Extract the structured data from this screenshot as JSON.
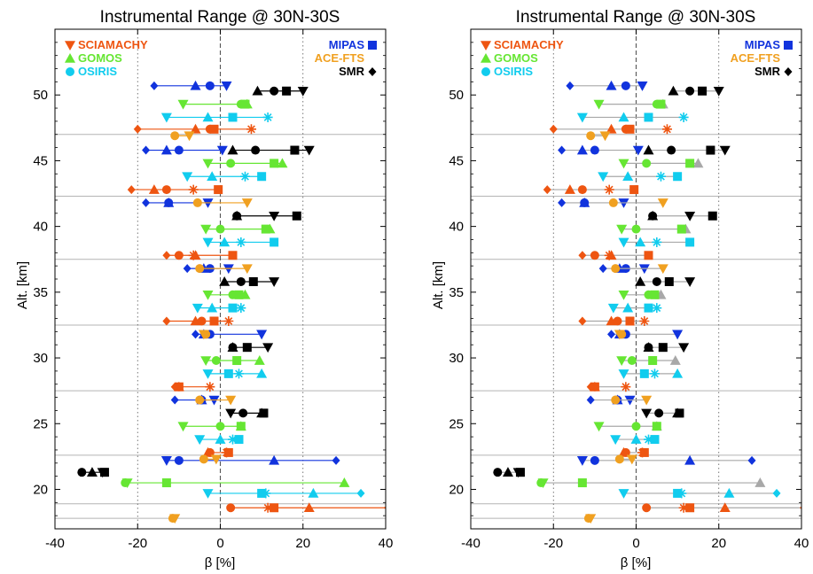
{
  "chart_data": [
    {
      "type": "scatter",
      "title": "Instrumental  Range @ 30N-30S",
      "xlabel": "β [%]",
      "ylabel": "Alt. [km]",
      "xlim": [
        -40,
        40
      ],
      "ylim": [
        17,
        55
      ],
      "xticks": [
        "-40",
        "-20",
        "0",
        "20",
        "40"
      ],
      "yticks": [
        "20",
        "25",
        "30",
        "35",
        "40",
        "45",
        "50"
      ],
      "grid": "dotted vertical lines at -20, 20; dashed line at 0; solid horizontal separators",
      "separators": [
        47,
        42.3,
        37.5,
        32.5,
        27.5,
        22.6,
        18.9,
        17.8
      ],
      "legend": [
        {
          "name": "SCIAMACHY",
          "color": "#ee5511",
          "marker": "triangle-down",
          "side": "left"
        },
        {
          "name": "GOMOS",
          "color": "#66e633",
          "marker": "triangle-up",
          "side": "left"
        },
        {
          "name": "OSIRIS",
          "color": "#11ccee",
          "marker": "circle",
          "side": "left"
        },
        {
          "name": "MIPAS",
          "color": "#1133dd",
          "marker": "square",
          "side": "right"
        },
        {
          "name": "ACE-FTS",
          "color": "#f0a020",
          "marker": "asterisk",
          "side": "right"
        },
        {
          "name": "SMR",
          "color": "#000000",
          "marker": "diamond",
          "side": "right"
        }
      ],
      "series": [
        {
          "name": "MIPAS",
          "color": "#1133dd",
          "rows": [
            {
              "alt": 50.7,
              "tri_down": 1.5,
              "tri_up": -6,
              "circle": -2.5,
              "diamond": -16
            },
            {
              "alt": 45.8,
              "tri_down": 0.5,
              "tri_up": -13,
              "circle": -10,
              "diamond": -18
            },
            {
              "alt": 41.8,
              "tri_down": -3,
              "tri_up": -12.5,
              "circle": -12.5,
              "diamond": -18
            },
            {
              "alt": 36.8,
              "tri_down": 2,
              "tri_up": -4,
              "circle": -2.5,
              "diamond": -8
            },
            {
              "alt": 31.8,
              "tri_down": 10,
              "tri_up": -4,
              "circle": -2.5,
              "diamond": -6
            },
            {
              "alt": 26.8,
              "tri_down": -1.5,
              "tri_up": -4.5,
              "circle": -4.5,
              "diamond": -11
            },
            {
              "alt": 22.2,
              "tri_down": -13,
              "tri_up": 13,
              "circle": -10,
              "diamond": 28
            }
          ]
        },
        {
          "name": "SMR",
          "color": "#000000",
          "rows": [
            {
              "alt": 50.3,
              "tri_down": 20,
              "tri_up": 9,
              "circle": 13,
              "square": 16
            },
            {
              "alt": 45.8,
              "tri_down": 21.5,
              "tri_up": 3,
              "circle": 8.5,
              "square": 18
            },
            {
              "alt": 40.8,
              "tri_down": 13,
              "tri_up": 4,
              "circle": 4,
              "square": 18.5
            },
            {
              "alt": 35.8,
              "tri_down": 13,
              "tri_up": 1,
              "circle": 5,
              "square": 8
            },
            {
              "alt": 30.8,
              "tri_down": 11.5,
              "tri_up": 3,
              "circle": 3,
              "square": 6.5
            },
            {
              "alt": 25.8,
              "tri_down": 2.5,
              "tri_up": 10,
              "circle": 5.5,
              "square": 10.5
            },
            {
              "alt": 21.3,
              "tri_down": -28.5,
              "tri_up": -31,
              "circle": -33.5,
              "square": -28
            }
          ]
        },
        {
          "name": "GOMOS",
          "color": "#66e633",
          "rows": [
            {
              "alt": 49.3,
              "tri_down": -9,
              "tri_up": 6.5,
              "circle": 5,
              "square": 6
            },
            {
              "alt": 44.8,
              "tri_down": -3,
              "tri_up": 15,
              "circle": 2.5,
              "square": 13
            },
            {
              "alt": 39.8,
              "tri_down": -3.5,
              "tri_up": 12,
              "circle": 0,
              "square": 11
            },
            {
              "alt": 34.8,
              "tri_down": -3,
              "tri_up": 6,
              "circle": 3,
              "square": 4.5
            },
            {
              "alt": 29.8,
              "tri_down": -3.5,
              "tri_up": 9.5,
              "circle": -1,
              "square": 4
            },
            {
              "alt": 24.8,
              "tri_down": -9,
              "tri_up": 5,
              "circle": 0,
              "square": 5
            },
            {
              "alt": 20.5,
              "tri_down": -22.5,
              "tri_up": 30,
              "circle": -23,
              "square": -13
            }
          ]
        },
        {
          "name": "OSIRIS",
          "color": "#11ccee",
          "rows": [
            {
              "alt": 48.3,
              "tri_down": -13,
              "tri_up": -3,
              "square": 3,
              "star": 11.5
            },
            {
              "alt": 43.8,
              "tri_down": -8,
              "tri_up": -2,
              "square": 10,
              "star": 6
            },
            {
              "alt": 38.8,
              "tri_down": -3,
              "tri_up": 1,
              "square": 13,
              "star": 5
            },
            {
              "alt": 33.8,
              "tri_down": -5.5,
              "tri_up": -2,
              "square": 3,
              "star": 5
            },
            {
              "alt": 28.8,
              "tri_down": -3,
              "tri_up": 10,
              "square": 2,
              "star": 4.5
            },
            {
              "alt": 23.8,
              "tri_down": -5,
              "tri_up": 0,
              "square": 4.5,
              "star": 3
            },
            {
              "alt": 19.7,
              "tri_down": -3,
              "tri_up": 22.5,
              "square": 10,
              "star": 11,
              "diamond": 34
            }
          ]
        },
        {
          "name": "SCIAMACHY",
          "color": "#ee5511",
          "rows": [
            {
              "alt": 47.4,
              "tri_up": -6,
              "circle": -2.5,
              "square": -1.5,
              "star": 7.5,
              "diamond": -20
            },
            {
              "alt": 42.8,
              "tri_up": -16,
              "circle": -13,
              "square": -0.5,
              "star": -6.5,
              "diamond": -21.5
            },
            {
              "alt": 37.8,
              "tri_up": -6,
              "circle": -10,
              "square": 3,
              "star": -6.5,
              "diamond": -13
            },
            {
              "alt": 32.8,
              "tri_up": -6,
              "circle": -4.5,
              "square": -1.5,
              "star": 2,
              "diamond": -13
            },
            {
              "alt": 27.8,
              "tri_up": -10,
              "circle": -10,
              "square": -10,
              "star": -2.5,
              "diamond": -11
            },
            {
              "alt": 22.8,
              "tri_up": -3,
              "circle": -2.5,
              "square": 2,
              "star": 1.5
            },
            {
              "alt": 18.6,
              "tri_up": 21.5,
              "circle": 2.5,
              "square": 13,
              "star": 11.5,
              "extends_to": 40
            }
          ]
        },
        {
          "name": "ACE-FTS",
          "color": "#f0a020",
          "rows": [
            {
              "alt": 46.9,
              "tri_down": -7.5,
              "circle": -11
            },
            {
              "alt": 41.8,
              "tri_down": 6.5,
              "circle": -5.5
            },
            {
              "alt": 36.8,
              "tri_down": 6.5,
              "circle": -5
            },
            {
              "alt": 31.8,
              "tri_down": -4,
              "circle": -3.5
            },
            {
              "alt": 26.8,
              "tri_down": 2.5,
              "circle": -5
            },
            {
              "alt": 22.3,
              "tri_down": -1,
              "circle": -4
            },
            {
              "alt": 17.8,
              "tri_down": -11,
              "circle": -11.5
            }
          ]
        }
      ]
    },
    {
      "type": "scatter",
      "title": "Instrumental  Range @ 30N-30S",
      "xlabel": "β [%]",
      "ylabel": "Alt. [km]",
      "xlim": [
        -40,
        40
      ],
      "ylim": [
        17,
        55
      ],
      "xticks": [
        "-40",
        "-20",
        "0",
        "20",
        "40"
      ],
      "yticks": [
        "20",
        "25",
        "30",
        "35",
        "40",
        "45",
        "50"
      ],
      "note": "same values as left panel; reference instrument markers and connecting lines drawn in gray",
      "gray_color": "#a8a8a8"
    }
  ]
}
